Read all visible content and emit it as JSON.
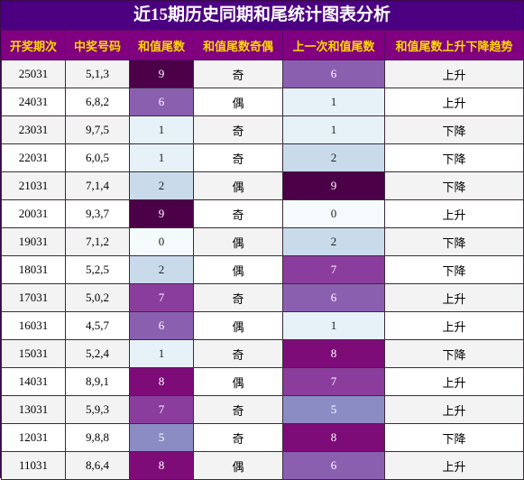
{
  "title": "近15期历史同期和尾统计图表分析",
  "headers": [
    "开奖期次",
    "中奖号码",
    "和值尾数",
    "和值尾数奇偶",
    "上一次和值尾数",
    "和值尾数上升下降趋势"
  ],
  "digit_colors": {
    "0": "#f5fbfd",
    "1": "#e6f1f8",
    "2": "#c9dbea",
    "5": "#8c8cc4",
    "6": "#8b5fb0",
    "7": "#8a3d9c",
    "8": "#7d0c78",
    "9": "#4b0048"
  },
  "light_text_color": "#ffffff",
  "dark_text_color": "#222222",
  "rows": [
    {
      "period": "25031",
      "numbers": "5,1,3",
      "tail": "9",
      "parity": "奇",
      "prev_tail": "6",
      "trend": "上升"
    },
    {
      "period": "24031",
      "numbers": "6,8,2",
      "tail": "6",
      "parity": "偶",
      "prev_tail": "1",
      "trend": "上升"
    },
    {
      "period": "23031",
      "numbers": "9,7,5",
      "tail": "1",
      "parity": "奇",
      "prev_tail": "1",
      "trend": "下降"
    },
    {
      "period": "22031",
      "numbers": "6,0,5",
      "tail": "1",
      "parity": "奇",
      "prev_tail": "2",
      "trend": "下降"
    },
    {
      "period": "21031",
      "numbers": "7,1,4",
      "tail": "2",
      "parity": "偶",
      "prev_tail": "9",
      "trend": "下降"
    },
    {
      "period": "20031",
      "numbers": "9,3,7",
      "tail": "9",
      "parity": "奇",
      "prev_tail": "0",
      "trend": "上升"
    },
    {
      "period": "19031",
      "numbers": "7,1,2",
      "tail": "0",
      "parity": "偶",
      "prev_tail": "2",
      "trend": "下降"
    },
    {
      "period": "18031",
      "numbers": "5,2,5",
      "tail": "2",
      "parity": "偶",
      "prev_tail": "7",
      "trend": "下降"
    },
    {
      "period": "17031",
      "numbers": "5,0,2",
      "tail": "7",
      "parity": "奇",
      "prev_tail": "6",
      "trend": "上升"
    },
    {
      "period": "16031",
      "numbers": "4,5,7",
      "tail": "6",
      "parity": "偶",
      "prev_tail": "1",
      "trend": "上升"
    },
    {
      "period": "15031",
      "numbers": "5,2,4",
      "tail": "1",
      "parity": "奇",
      "prev_tail": "8",
      "trend": "下降"
    },
    {
      "period": "14031",
      "numbers": "8,9,1",
      "tail": "8",
      "parity": "偶",
      "prev_tail": "7",
      "trend": "上升"
    },
    {
      "period": "13031",
      "numbers": "5,9,3",
      "tail": "7",
      "parity": "奇",
      "prev_tail": "5",
      "trend": "上升"
    },
    {
      "period": "12031",
      "numbers": "9,8,8",
      "tail": "5",
      "parity": "奇",
      "prev_tail": "8",
      "trend": "下降"
    },
    {
      "period": "11031",
      "numbers": "8,6,4",
      "tail": "8",
      "parity": "偶",
      "prev_tail": "6",
      "trend": "上升"
    }
  ]
}
